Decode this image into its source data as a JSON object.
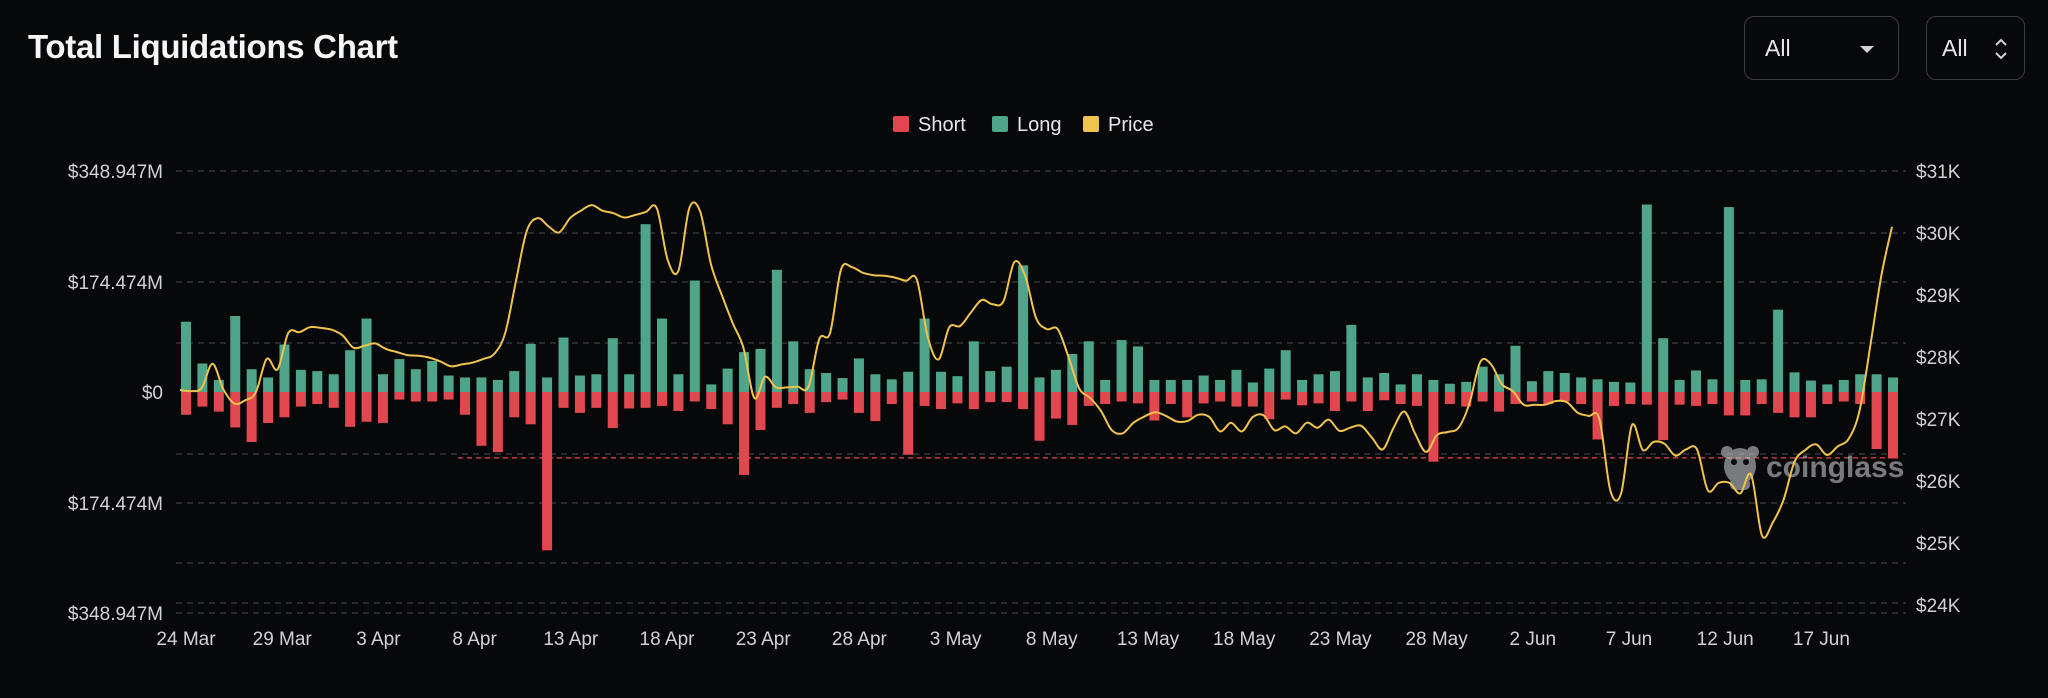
{
  "header": {
    "title": "Total Liquidations Chart",
    "range_select": {
      "value": "All",
      "icon": "caret-down-icon"
    },
    "coin_select": {
      "value": "All",
      "icon": "up-down-chevron-icon"
    }
  },
  "watermark": {
    "text": "coinglass",
    "icon": "coinglass-mascot-icon"
  },
  "colors": {
    "background": "#07080a",
    "short": "#e0474f",
    "long": "#4fa58a",
    "price": "#efc34c",
    "grid": "#3a3d44",
    "text": "#cfd3d8"
  },
  "chart_data": {
    "type": "bar",
    "title": "Total Liquidations Chart",
    "legend": {
      "position": "top-center",
      "items": [
        {
          "name": "Short",
          "color": "#e0474f"
        },
        {
          "name": "Long",
          "color": "#4fa58a"
        },
        {
          "name": "Price",
          "color": "#efc34c"
        }
      ]
    },
    "grid": true,
    "x_tick_labels": [
      "24 Mar",
      "29 Mar",
      "3 Apr",
      "8 Apr",
      "13 Apr",
      "18 Apr",
      "23 Apr",
      "28 Apr",
      "3 May",
      "8 May",
      "13 May",
      "18 May",
      "23 May",
      "28 May",
      "2 Jun",
      "7 Jun",
      "12 Jun",
      "17 Jun"
    ],
    "left_axis": {
      "ticks": [
        "$348.947M",
        "$174.474M",
        "$0",
        "$174.474M",
        "$348.947M"
      ],
      "ylim": [
        -348.947,
        348.947
      ],
      "unit": "M USD"
    },
    "right_axis": {
      "ticks": [
        "$31K",
        "$30K",
        "$29K",
        "$28K",
        "$27K",
        "$26K",
        "$25K",
        "$24K"
      ],
      "ylim": [
        24000,
        31000
      ]
    },
    "reference_line": {
      "value": -104,
      "series": "Short",
      "style": "dashed"
    },
    "series": [
      {
        "name": "Long",
        "axis": "left",
        "values": [
          111,
          45,
          19,
          120,
          36,
          23,
          75,
          35,
          33,
          28,
          66,
          116,
          28,
          52,
          36,
          49,
          26,
          23,
          23,
          19,
          33,
          76,
          23,
          86,
          26,
          28,
          85,
          28,
          265,
          116,
          28,
          176,
          12,
          37,
          63,
          68,
          193,
          80,
          36,
          30,
          22,
          53,
          28,
          20,
          32,
          116,
          32,
          25,
          80,
          33,
          40,
          200,
          23,
          35,
          60,
          80,
          19,
          82,
          72,
          19,
          19,
          19,
          26,
          19,
          35,
          15,
          37,
          66,
          19,
          28,
          33,
          106,
          23,
          30,
          12,
          28,
          19,
          13,
          16,
          40,
          28,
          73,
          17,
          33,
          30,
          23,
          20,
          16,
          15,
          296,
          85,
          19,
          34,
          20,
          292,
          19,
          20,
          130,
          31,
          18,
          12,
          19,
          28,
          28,
          23
        ],
        "note": "values in $M"
      },
      {
        "name": "Short",
        "axis": "left",
        "values": [
          36,
          23,
          31,
          56,
          79,
          49,
          40,
          23,
          19,
          25,
          55,
          47,
          49,
          12,
          15,
          15,
          12,
          36,
          85,
          95,
          40,
          51,
          250,
          25,
          33,
          25,
          57,
          26,
          25,
          22,
          30,
          15,
          27,
          51,
          131,
          60,
          25,
          19,
          33,
          16,
          12,
          33,
          46,
          19,
          99,
          22,
          27,
          18,
          27,
          16,
          16,
          27,
          77,
          42,
          52,
          22,
          19,
          15,
          18,
          45,
          19,
          40,
          18,
          15,
          23,
          23,
          43,
          12,
          21,
          18,
          30,
          15,
          30,
          13,
          19,
          22,
          110,
          19,
          23,
          15,
          31,
          19,
          15,
          19,
          15,
          19,
          75,
          22,
          19,
          20,
          76,
          20,
          22,
          19,
          37,
          37,
          19,
          33,
          40,
          40,
          19,
          15,
          19,
          90,
          105
        ],
        "note": "values in $M"
      },
      {
        "name": "Price",
        "axis": "right",
        "x_start": "24 Mar",
        "x_end": "21 Jun",
        "values": [
          27470,
          27450,
          27500,
          27890,
          27480,
          27250,
          27300,
          27430,
          27970,
          27800,
          28390,
          28400,
          28480,
          28470,
          28440,
          28350,
          28150,
          28180,
          28220,
          28130,
          28080,
          28030,
          28020,
          27990,
          27930,
          27850,
          27880,
          27910,
          27970,
          28050,
          28380,
          29220,
          30030,
          30240,
          30110,
          30010,
          30240,
          30360,
          30450,
          30360,
          30320,
          30250,
          30290,
          30340,
          30400,
          29570,
          29390,
          30400,
          30350,
          29500,
          29000,
          28550,
          28150,
          27340,
          27680,
          27510,
          27510,
          27520,
          27520,
          28290,
          28390,
          29410,
          29450,
          29360,
          29320,
          29310,
          29280,
          29230,
          29250,
          28330,
          27960,
          28480,
          28500,
          28720,
          28920,
          28850,
          28900,
          29530,
          29310,
          28630,
          28450,
          28450,
          28000,
          27490,
          27340,
          27130,
          26820,
          26770,
          26940,
          27040,
          27110,
          27050,
          26960,
          26970,
          27070,
          27030,
          26800,
          26940,
          26800,
          27030,
          27060,
          26820,
          26880,
          26770,
          26940,
          26860,
          26990,
          26810,
          26860,
          26890,
          26700,
          26510,
          26860,
          27120,
          26760,
          26470,
          26740,
          26790,
          26860,
          27250,
          27920,
          27880,
          27560,
          27450,
          27230,
          27230,
          27230,
          27290,
          27270,
          27100,
          27050,
          27000,
          25850,
          25800,
          26900,
          26500,
          26630,
          26600,
          26410,
          26510,
          26510,
          25850,
          25970,
          25970,
          25800,
          26100,
          25120,
          25330,
          25700,
          26310,
          26500,
          26590,
          26420,
          26560,
          26680,
          27130,
          28180,
          29300,
          30100
        ]
      }
    ]
  }
}
